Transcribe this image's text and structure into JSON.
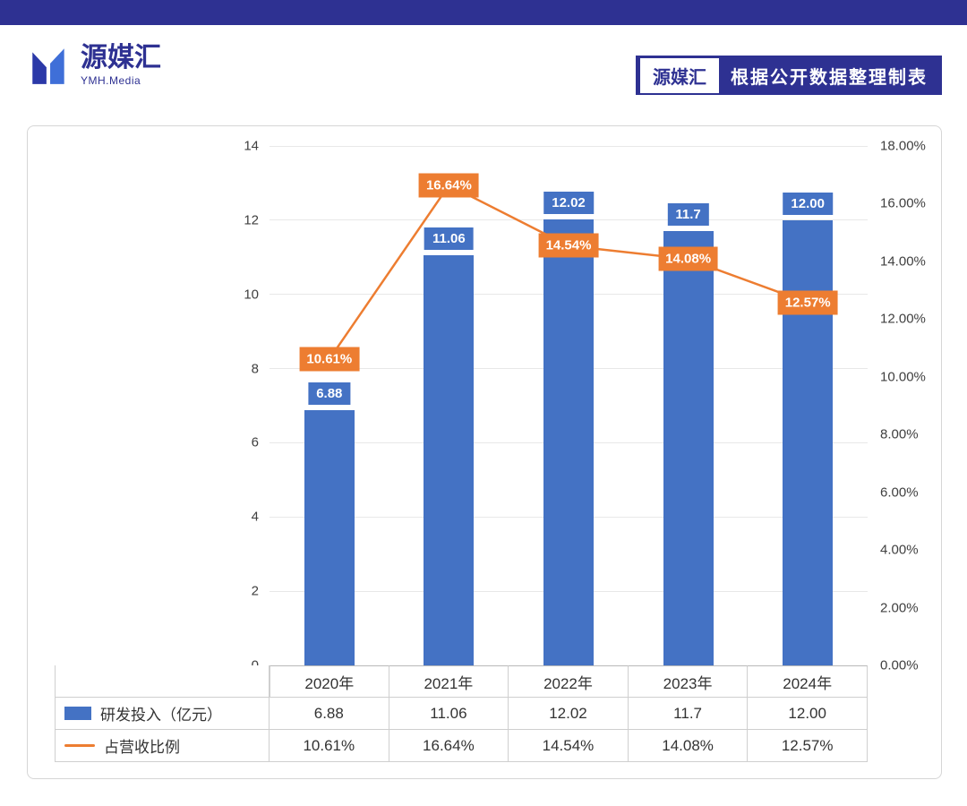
{
  "logo": {
    "name": "源媒汇",
    "subtitle": "YMH.Media"
  },
  "header_badge": {
    "brand": "源媒汇",
    "text": "根据公开数据整理制表"
  },
  "colors": {
    "brand": "#2E3192",
    "bar": "#4472C4",
    "line": "#ED7D31"
  },
  "chart_data": {
    "type": "bar",
    "subtype": "bar+line combo",
    "categories": [
      "2020年",
      "2021年",
      "2022年",
      "2023年",
      "2024年"
    ],
    "series": [
      {
        "name": "研发投入（亿元）",
        "type": "bar",
        "axis": "left",
        "color": "#4472C4",
        "values": [
          6.88,
          11.06,
          12.02,
          11.7,
          12.0
        ],
        "labels": [
          "6.88",
          "11.06",
          "12.02",
          "11.7",
          "12.00"
        ]
      },
      {
        "name": "占营收比例",
        "type": "line",
        "axis": "right",
        "color": "#ED7D31",
        "values": [
          10.61,
          16.64,
          14.54,
          14.08,
          12.57
        ],
        "labels": [
          "10.61%",
          "16.64%",
          "14.54%",
          "14.08%",
          "12.57%"
        ]
      }
    ],
    "left_axis": {
      "min": 0,
      "max": 14,
      "step": 2,
      "ticks": [
        "0",
        "2",
        "4",
        "6",
        "8",
        "10",
        "12",
        "14"
      ]
    },
    "right_axis": {
      "min": 0,
      "max": 18,
      "step": 2,
      "ticks": [
        "0.00%",
        "2.00%",
        "4.00%",
        "6.00%",
        "8.00%",
        "10.00%",
        "12.00%",
        "14.00%",
        "16.00%",
        "18.00%"
      ]
    },
    "grid": true,
    "legend_position": "table-left",
    "data_table": {
      "rows": [
        {
          "label": "研发投入（亿元）",
          "values": [
            "6.88",
            "11.06",
            "12.02",
            "11.7",
            "12.00"
          ]
        },
        {
          "label": "占营收比例",
          "values": [
            "10.61%",
            "16.64%",
            "14.54%",
            "14.08%",
            "12.57%"
          ]
        }
      ]
    }
  }
}
